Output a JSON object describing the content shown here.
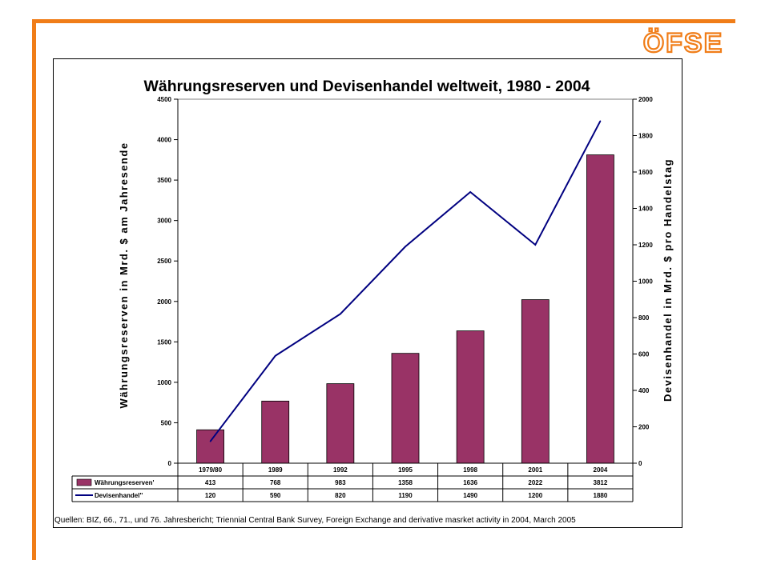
{
  "logo_text": "ÖFSE",
  "source_text": "Quellen: BIZ, 66., 71., und 76. Jahresbericht; Triennial Central Bank Survey, Foreign Exchange and derivative masrket activity in 2004, March 2005",
  "colors": {
    "accent": "#f07d18",
    "bar": "#993366",
    "line": "#000080"
  },
  "chart_data": {
    "type": "bar",
    "title": "Währungsreserven und Devisenhandel weltweit, 1980 - 2004",
    "categories": [
      "1979/80",
      "1989",
      "1992",
      "1995",
      "1998",
      "2001",
      "2004"
    ],
    "ylabel_left": "Währungsreserven in Mrd. $ am Jahresende",
    "ylabel_right": "Devisenhandel in Mrd. $ pro Handelstag",
    "ylim_left": [
      0,
      4500
    ],
    "ylim_right": [
      0,
      2000
    ],
    "yticks_left": [
      "0",
      "500",
      "1000",
      "1500",
      "2000",
      "2500",
      "3000",
      "3500",
      "4000",
      "4500"
    ],
    "yticks_right": [
      "0",
      "200",
      "400",
      "600",
      "800",
      "1000",
      "1200",
      "1400",
      "1600",
      "1800",
      "2000"
    ],
    "series": [
      {
        "name": "Währungsreserven'",
        "type": "bar",
        "axis": "left",
        "values": [
          413,
          768,
          983,
          1358,
          1636,
          2022,
          3812
        ],
        "labels": [
          "413",
          "768",
          "983",
          "1358",
          "1636",
          "2022",
          "3812"
        ]
      },
      {
        "name": "Devisenhandel''",
        "type": "line",
        "axis": "right",
        "values": [
          120,
          590,
          820,
          1190,
          1490,
          1200,
          1880
        ],
        "labels": [
          "120",
          "590",
          "820",
          "1190",
          "1490",
          "1200",
          "1880"
        ]
      }
    ],
    "grid": false,
    "legend": "data-table"
  }
}
